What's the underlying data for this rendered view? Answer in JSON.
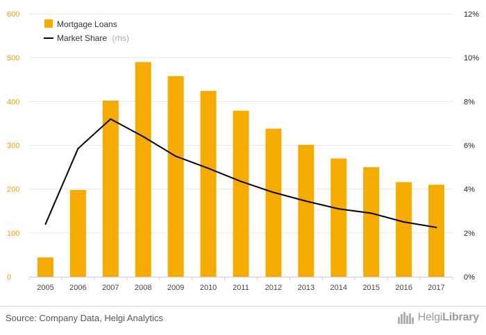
{
  "chart_data": {
    "type": "bar+line",
    "categories": [
      "2005",
      "2006",
      "2007",
      "2008",
      "2009",
      "2010",
      "2011",
      "2012",
      "2013",
      "2014",
      "2015",
      "2016",
      "2017"
    ],
    "series": [
      {
        "name": "Mortgage Loans",
        "type": "bar",
        "axis": "left",
        "color": "#f5ab00",
        "values": [
          44,
          198,
          402,
          490,
          458,
          424,
          379,
          338,
          301,
          270,
          250,
          216,
          210
        ]
      },
      {
        "name": "Market Share",
        "type": "line",
        "axis": "right",
        "color": "#000000",
        "values": [
          2.4,
          5.85,
          7.2,
          6.4,
          5.5,
          4.95,
          4.35,
          3.85,
          3.45,
          3.1,
          2.9,
          2.5,
          2.25
        ]
      }
    ],
    "legend_rhs_note": "(rhs)",
    "left_axis": {
      "ylim": [
        0,
        600
      ],
      "ticks": [
        "0",
        "100",
        "200",
        "300",
        "400",
        "500",
        "600"
      ]
    },
    "right_axis": {
      "ylim": [
        0,
        12
      ],
      "ticks": [
        "0%",
        "2%",
        "4%",
        "6%",
        "8%",
        "10%",
        "12%"
      ]
    },
    "grid": true,
    "legend_position": "top-left"
  },
  "footer": {
    "source": "Source: Company Data, Helgi Analytics",
    "logo_light": "Helgi",
    "logo_bold": "Library"
  }
}
